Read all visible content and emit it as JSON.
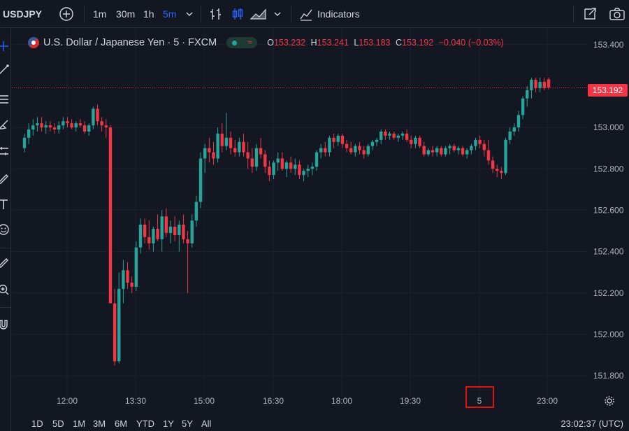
{
  "toolbar": {
    "symbol": "USDJPY",
    "intervals": [
      "1m",
      "30m",
      "1h",
      "5m"
    ],
    "active_interval": "5m",
    "indicators_label": "Indicators"
  },
  "legend": {
    "title": "U.S. Dollar / Japanese Yen · 5 · FXCM",
    "o_label": "O",
    "o": "153.232",
    "h_label": "H",
    "h": "153.241",
    "l_label": "L",
    "l": "153.183",
    "c_label": "C",
    "c": "153.192",
    "change": "−0.040 (−0.03%)"
  },
  "price_axis": {
    "ticks": [
      "153.400",
      "153.000",
      "152.800",
      "152.600",
      "152.400",
      "152.200",
      "152.000",
      "151.800"
    ],
    "last_price": "153.192"
  },
  "time_axis": {
    "ticks": [
      "12:00",
      "13:30",
      "15:00",
      "16:30",
      "18:00",
      "19:30",
      "5",
      "23:00"
    ],
    "highlighted": "5"
  },
  "ranges": [
    "1D",
    "5D",
    "1M",
    "3M",
    "6M",
    "YTD",
    "1Y",
    "5Y",
    "All"
  ],
  "clock": "23:02:37 (UTC)",
  "colors": {
    "up": "#26a69a",
    "down": "#f23645",
    "bg": "#131722",
    "grid": "#1e222d",
    "accent": "#2962ff",
    "highlight_box": "#e3120b"
  },
  "chart_data": {
    "type": "candlestick",
    "ylim": [
      151.78,
      153.45
    ],
    "series": [
      [
        152.9,
        152.97,
        152.88,
        152.95
      ],
      [
        152.95,
        153.02,
        152.92,
        152.99
      ],
      [
        152.99,
        153.04,
        152.96,
        153.01
      ],
      [
        153.01,
        153.05,
        152.98,
        153.02
      ],
      [
        153.02,
        153.05,
        152.98,
        153.0
      ],
      [
        153.0,
        153.03,
        152.97,
        153.01
      ],
      [
        153.01,
        153.03,
        152.98,
        153.0
      ],
      [
        153.0,
        153.02,
        152.97,
        152.99
      ],
      [
        152.99,
        153.03,
        152.97,
        153.01
      ],
      [
        153.01,
        153.05,
        152.99,
        153.03
      ],
      [
        153.03,
        153.05,
        153.0,
        153.02
      ],
      [
        153.02,
        153.04,
        152.99,
        153.0
      ],
      [
        153.0,
        153.03,
        152.98,
        153.02
      ],
      [
        153.02,
        153.04,
        153.0,
        153.01
      ],
      [
        153.01,
        153.03,
        152.97,
        152.98
      ],
      [
        152.98,
        153.02,
        152.96,
        153.01
      ],
      [
        153.01,
        153.1,
        152.99,
        153.09
      ],
      [
        153.09,
        153.11,
        153.01,
        153.03
      ],
      [
        153.03,
        153.05,
        152.98,
        153.01
      ],
      [
        153.01,
        153.04,
        152.95,
        153.0
      ],
      [
        153.0,
        153.01,
        152.15,
        152.15
      ],
      [
        152.15,
        152.22,
        151.85,
        151.87
      ],
      [
        151.87,
        152.3,
        151.86,
        152.22
      ],
      [
        152.22,
        152.36,
        152.15,
        152.31
      ],
      [
        152.31,
        152.35,
        152.22,
        152.25
      ],
      [
        152.25,
        152.28,
        152.2,
        152.23
      ],
      [
        152.23,
        152.45,
        152.21,
        152.42
      ],
      [
        152.42,
        152.56,
        152.39,
        152.53
      ],
      [
        152.53,
        152.56,
        152.44,
        152.47
      ],
      [
        152.47,
        152.55,
        152.41,
        152.44
      ],
      [
        152.44,
        152.52,
        152.4,
        152.51
      ],
      [
        152.51,
        152.58,
        152.45,
        152.46
      ],
      [
        152.46,
        152.6,
        152.4,
        152.57
      ],
      [
        152.57,
        152.61,
        152.47,
        152.49
      ],
      [
        152.49,
        152.55,
        152.44,
        152.52
      ],
      [
        152.52,
        152.57,
        152.45,
        152.48
      ],
      [
        152.48,
        152.55,
        152.4,
        152.53
      ],
      [
        152.53,
        152.58,
        152.44,
        152.46
      ],
      [
        152.46,
        152.5,
        152.2,
        152.44
      ],
      [
        152.44,
        152.58,
        152.42,
        152.55
      ],
      [
        152.55,
        152.67,
        152.52,
        152.64
      ],
      [
        152.64,
        152.88,
        152.61,
        152.85
      ],
      [
        152.85,
        152.92,
        152.78,
        152.9
      ],
      [
        152.9,
        152.95,
        152.83,
        152.88
      ],
      [
        152.88,
        152.93,
        152.82,
        152.85
      ],
      [
        152.85,
        153.0,
        152.83,
        152.97
      ],
      [
        152.97,
        153.02,
        152.88,
        152.91
      ],
      [
        152.91,
        153.07,
        152.89,
        152.95
      ],
      [
        152.95,
        152.98,
        152.87,
        152.9
      ],
      [
        152.9,
        152.94,
        152.86,
        152.88
      ],
      [
        152.88,
        152.95,
        152.86,
        152.93
      ],
      [
        152.93,
        152.97,
        152.86,
        152.88
      ],
      [
        152.88,
        152.93,
        152.8,
        152.85
      ],
      [
        152.85,
        152.9,
        152.78,
        152.81
      ],
      [
        152.81,
        152.92,
        152.79,
        152.9
      ],
      [
        152.9,
        152.95,
        152.85,
        152.87
      ],
      [
        152.87,
        152.89,
        152.78,
        152.81
      ],
      [
        152.81,
        152.84,
        152.74,
        152.77
      ],
      [
        152.77,
        152.84,
        152.75,
        152.83
      ],
      [
        152.83,
        152.88,
        152.79,
        152.85
      ],
      [
        152.85,
        152.88,
        152.79,
        152.8
      ],
      [
        152.8,
        152.84,
        152.76,
        152.83
      ],
      [
        152.83,
        152.86,
        152.78,
        152.8
      ],
      [
        152.8,
        152.85,
        152.77,
        152.82
      ],
      [
        152.82,
        152.84,
        152.75,
        152.77
      ],
      [
        152.77,
        152.8,
        152.74,
        152.79
      ],
      [
        152.79,
        152.82,
        152.76,
        152.8
      ],
      [
        152.8,
        152.83,
        152.77,
        152.81
      ],
      [
        152.81,
        152.89,
        152.79,
        152.88
      ],
      [
        152.88,
        152.92,
        152.85,
        152.9
      ],
      [
        152.9,
        152.93,
        152.86,
        152.88
      ],
      [
        152.88,
        152.96,
        152.86,
        152.95
      ],
      [
        152.95,
        152.97,
        152.9,
        152.93
      ],
      [
        152.93,
        152.97,
        152.91,
        152.96
      ],
      [
        152.96,
        152.97,
        152.9,
        152.92
      ],
      [
        152.92,
        152.94,
        152.88,
        152.9
      ],
      [
        152.9,
        152.93,
        152.87,
        152.88
      ],
      [
        152.88,
        152.92,
        152.86,
        152.91
      ],
      [
        152.91,
        152.93,
        152.87,
        152.89
      ],
      [
        152.89,
        152.91,
        152.85,
        152.87
      ],
      [
        152.87,
        152.92,
        152.86,
        152.91
      ],
      [
        152.91,
        152.94,
        152.89,
        152.93
      ],
      [
        152.93,
        152.95,
        152.91,
        152.94
      ],
      [
        152.94,
        152.99,
        152.92,
        152.98
      ],
      [
        152.98,
        152.99,
        152.94,
        152.96
      ],
      [
        152.96,
        152.98,
        152.94,
        152.97
      ],
      [
        152.97,
        152.98,
        152.94,
        152.95
      ],
      [
        152.95,
        152.97,
        152.93,
        152.96
      ],
      [
        152.96,
        152.98,
        152.94,
        152.97
      ],
      [
        152.97,
        152.99,
        152.93,
        152.94
      ],
      [
        152.94,
        152.96,
        152.9,
        152.92
      ],
      [
        152.92,
        152.96,
        152.9,
        152.95
      ],
      [
        152.95,
        152.96,
        152.9,
        152.91
      ],
      [
        152.91,
        152.93,
        152.86,
        152.87
      ],
      [
        152.87,
        152.9,
        152.86,
        152.89
      ],
      [
        152.89,
        152.91,
        152.86,
        152.88
      ],
      [
        152.88,
        152.91,
        152.86,
        152.9
      ],
      [
        152.9,
        152.91,
        152.86,
        152.87
      ],
      [
        152.87,
        152.91,
        152.86,
        152.9
      ],
      [
        152.9,
        152.92,
        152.87,
        152.91
      ],
      [
        152.91,
        152.92,
        152.88,
        152.89
      ],
      [
        152.89,
        152.91,
        152.87,
        152.9
      ],
      [
        152.9,
        152.91,
        152.86,
        152.87
      ],
      [
        152.87,
        152.9,
        152.85,
        152.89
      ],
      [
        152.89,
        152.92,
        152.87,
        152.91
      ],
      [
        152.91,
        152.95,
        152.89,
        152.94
      ],
      [
        152.94,
        152.96,
        152.9,
        152.92
      ],
      [
        152.92,
        152.94,
        152.86,
        152.89
      ],
      [
        152.89,
        152.94,
        152.82,
        152.84
      ],
      [
        152.84,
        152.86,
        152.78,
        152.8
      ],
      [
        152.8,
        152.82,
        152.76,
        152.79
      ],
      [
        152.79,
        152.81,
        152.75,
        152.78
      ],
      [
        152.78,
        152.95,
        152.77,
        152.94
      ],
      [
        152.94,
        153.0,
        152.92,
        152.98
      ],
      [
        152.98,
        153.02,
        152.96,
        153.0
      ],
      [
        153.0,
        153.08,
        152.98,
        153.06
      ],
      [
        153.06,
        153.15,
        153.04,
        153.14
      ],
      [
        153.14,
        153.2,
        153.1,
        153.18
      ],
      [
        153.18,
        153.24,
        153.14,
        153.23
      ],
      [
        153.23,
        153.24,
        153.17,
        153.19
      ],
      [
        153.19,
        153.24,
        153.17,
        153.22
      ],
      [
        153.22,
        153.24,
        153.18,
        153.19
      ],
      [
        153.232,
        153.241,
        153.183,
        153.192
      ]
    ]
  }
}
